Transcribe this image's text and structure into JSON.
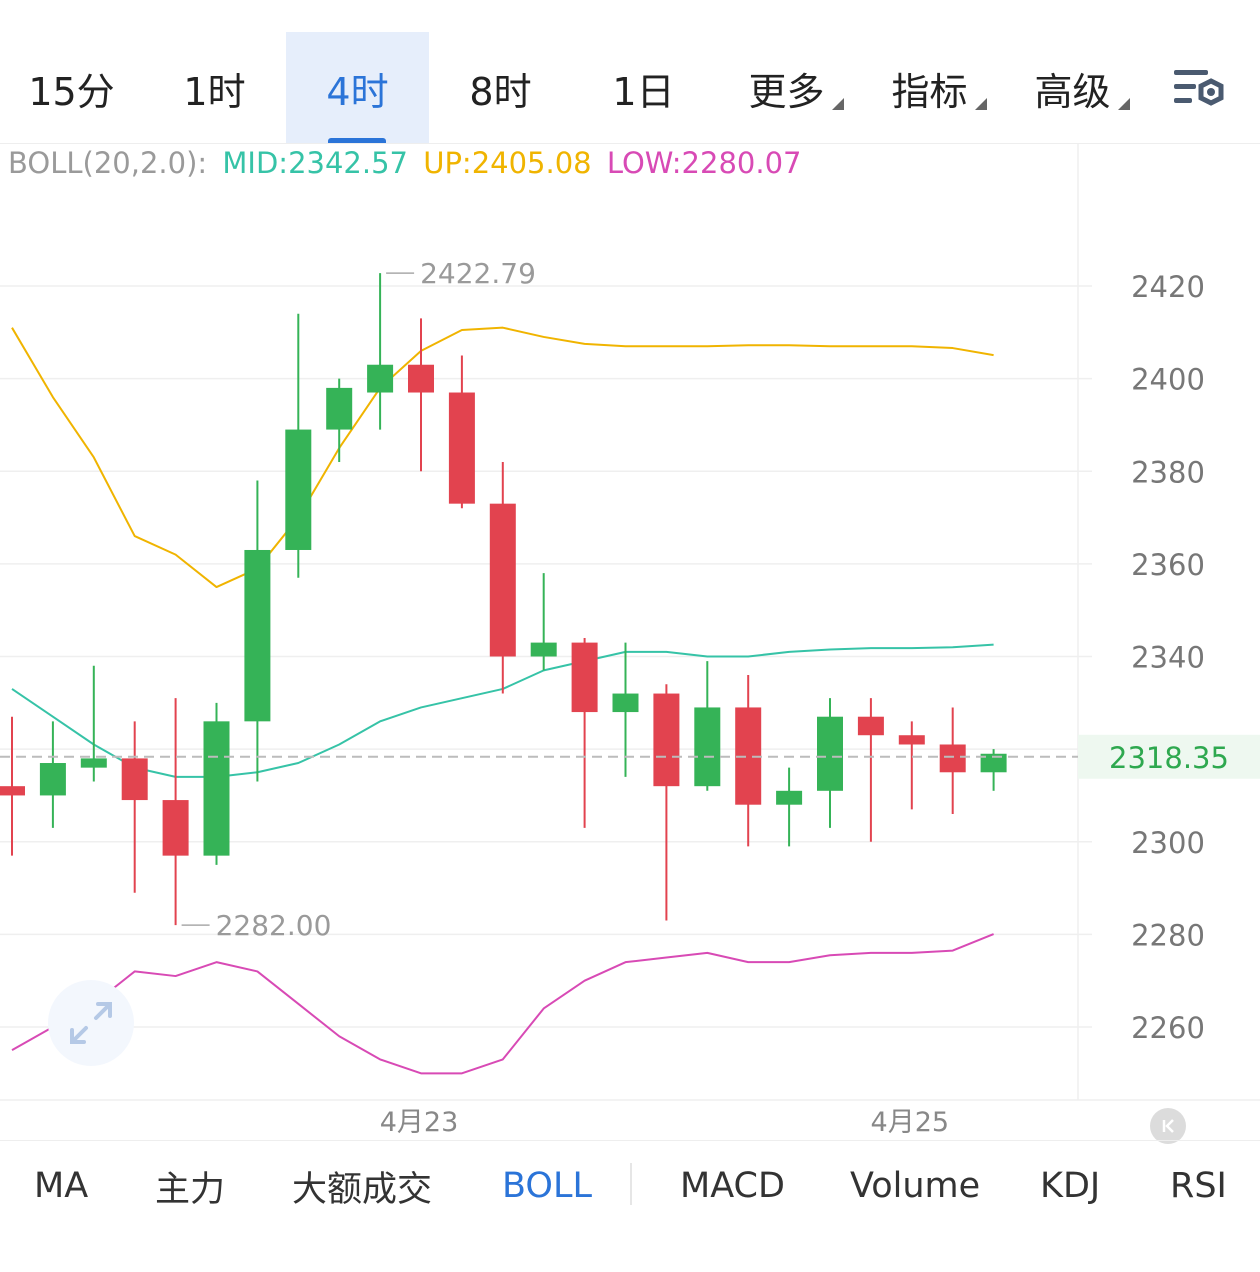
{
  "period_tabs": [
    {
      "label": "15分",
      "active": false,
      "dropdown": false
    },
    {
      "label": "1时",
      "active": false,
      "dropdown": false
    },
    {
      "label": "4时",
      "active": true,
      "dropdown": false
    },
    {
      "label": "8时",
      "active": false,
      "dropdown": false
    },
    {
      "label": "1日",
      "active": false,
      "dropdown": false
    },
    {
      "label": "更多",
      "active": false,
      "dropdown": true
    },
    {
      "label": "指标",
      "active": false,
      "dropdown": true
    },
    {
      "label": "高级",
      "active": false,
      "dropdown": true
    }
  ],
  "settings_icon": "chart-settings-icon",
  "boll_legend": {
    "label": "BOLL(20,2.0):",
    "mid": "MID:2342.57",
    "up": "UP:2405.08",
    "low": "LOW:2280.07"
  },
  "colors": {
    "accent": "#2b74d8",
    "up_candle": "#35b357",
    "down_candle": "#e2434f",
    "mid_line": "#36c3a7",
    "upper_line": "#f0b400",
    "lower_line": "#d84ab5",
    "current_price": "#2ea84f"
  },
  "chart_data": {
    "type": "candlestick",
    "y_ticks": [
      "2420",
      "2400",
      "2380",
      "2360",
      "2340",
      "2300",
      "2280",
      "2260"
    ],
    "ylim": [
      2248,
      2435
    ],
    "x_tick_labels": [
      {
        "index": 10,
        "label": "4月23"
      },
      {
        "index": 22,
        "label": "4月25"
      }
    ],
    "high_marker": {
      "index": 9,
      "value": 2422.79,
      "label": "2422.79"
    },
    "low_marker": {
      "index": 4,
      "value": 2282.0,
      "label": "2282.00"
    },
    "current_price": {
      "value": 2318.35,
      "label": "2318.35"
    },
    "candles": [
      {
        "o": 2312,
        "h": 2327,
        "l": 2297,
        "c": 2310
      },
      {
        "o": 2310,
        "h": 2326,
        "l": 2303,
        "c": 2317
      },
      {
        "o": 2316,
        "h": 2338,
        "l": 2313,
        "c": 2318
      },
      {
        "o": 2318,
        "h": 2326,
        "l": 2289,
        "c": 2309
      },
      {
        "o": 2309,
        "h": 2331,
        "l": 2282,
        "c": 2297
      },
      {
        "o": 2297,
        "h": 2330,
        "l": 2295,
        "c": 2326
      },
      {
        "o": 2326,
        "h": 2378,
        "l": 2313,
        "c": 2363
      },
      {
        "o": 2363,
        "h": 2414,
        "l": 2357,
        "c": 2389
      },
      {
        "o": 2389,
        "h": 2400,
        "l": 2382,
        "c": 2398
      },
      {
        "o": 2397,
        "h": 2422.79,
        "l": 2389,
        "c": 2403
      },
      {
        "o": 2403,
        "h": 2413,
        "l": 2380,
        "c": 2397
      },
      {
        "o": 2397,
        "h": 2405,
        "l": 2372,
        "c": 2373
      },
      {
        "o": 2373,
        "h": 2382,
        "l": 2332,
        "c": 2340
      },
      {
        "o": 2340,
        "h": 2358,
        "l": 2337,
        "c": 2343
      },
      {
        "o": 2343,
        "h": 2344,
        "l": 2303,
        "c": 2328
      },
      {
        "o": 2328,
        "h": 2343,
        "l": 2314,
        "c": 2332
      },
      {
        "o": 2332,
        "h": 2334,
        "l": 2283,
        "c": 2312
      },
      {
        "o": 2312,
        "h": 2339,
        "l": 2311,
        "c": 2329
      },
      {
        "o": 2329,
        "h": 2336,
        "l": 2299,
        "c": 2308
      },
      {
        "o": 2308,
        "h": 2316,
        "l": 2299,
        "c": 2311
      },
      {
        "o": 2311,
        "h": 2331,
        "l": 2303,
        "c": 2327
      },
      {
        "o": 2327,
        "h": 2331,
        "l": 2300,
        "c": 2323
      },
      {
        "o": 2323,
        "h": 2326,
        "l": 2307,
        "c": 2321
      },
      {
        "o": 2321,
        "h": 2329,
        "l": 2306,
        "c": 2315
      },
      {
        "o": 2315,
        "h": 2320,
        "l": 2311,
        "c": 2319
      }
    ],
    "boll_upper": [
      2411,
      2396,
      2383,
      2366,
      2362,
      2355,
      2359,
      2370,
      2385,
      2398,
      2406,
      2410.5,
      2411,
      2409,
      2407.5,
      2407,
      2407,
      2407,
      2407.2,
      2407.2,
      2407,
      2407,
      2407,
      2406.6,
      2405.08
    ],
    "boll_mid": [
      2333,
      2327,
      2321,
      2316,
      2314,
      2314,
      2315,
      2317,
      2321,
      2326,
      2329,
      2331,
      2333,
      2337,
      2339,
      2341,
      2341,
      2340,
      2340,
      2341,
      2341.5,
      2341.8,
      2341.8,
      2342,
      2342.57
    ],
    "boll_lower": [
      2255,
      2260,
      2265,
      2272,
      2271,
      2274,
      2272,
      2265,
      2258,
      2253,
      2250,
      2250,
      2253,
      2264,
      2270,
      2274,
      2275,
      2276,
      2274,
      2274,
      2275.5,
      2276,
      2276,
      2276.5,
      2280.07
    ]
  },
  "indicator_tabs": [
    {
      "label": "MA",
      "active": false
    },
    {
      "label": "主力",
      "active": false
    },
    {
      "label": "大额成交",
      "active": false
    },
    {
      "label": "BOLL",
      "active": true
    },
    {
      "label": "MACD",
      "active": false
    },
    {
      "label": "Volume",
      "active": false
    },
    {
      "label": "KDJ",
      "active": false
    },
    {
      "label": "RSI",
      "active": false
    }
  ],
  "expand_icon": "expand-arrows-icon",
  "collapse_icon": "collapse-left-icon"
}
